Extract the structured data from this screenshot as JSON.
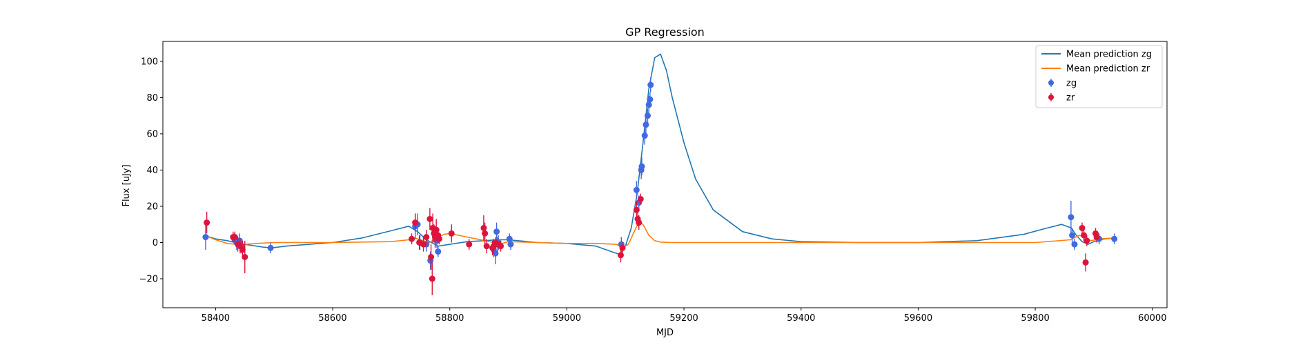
{
  "chart_data": {
    "type": "scatter",
    "title": "GP Regression",
    "xlabel": "MJD",
    "ylabel": "Flux [uJy]",
    "xlim": [
      58310,
      60025
    ],
    "ylim": [
      -36,
      111
    ],
    "xticks": [
      58400,
      58600,
      58800,
      59000,
      59200,
      59400,
      59600,
      59800,
      60000
    ],
    "yticks": [
      -20,
      0,
      20,
      40,
      60,
      80,
      100
    ],
    "grid": false,
    "legend_position": "top-right",
    "legend": [
      {
        "label": "Mean prediction zg",
        "kind": "line",
        "color": "#1f77b4"
      },
      {
        "label": "Mean prediction zr",
        "kind": "line",
        "color": "#ff7f0e"
      },
      {
        "label": "zg",
        "kind": "errorbar",
        "color": "#4169e1"
      },
      {
        "label": "zr",
        "kind": "errorbar",
        "color": "#dc143c"
      }
    ],
    "series": [
      {
        "name": "Mean prediction zg",
        "kind": "line",
        "color": "#1f77b4",
        "x": [
          58385,
          58400,
          58420,
          58440,
          58460,
          58480,
          58495,
          58520,
          58560,
          58600,
          58650,
          58700,
          58730,
          58745,
          58760,
          58780,
          58800,
          58830,
          58860,
          58880,
          58900,
          58950,
          59000,
          59050,
          59080,
          59090,
          59100,
          59110,
          59120,
          59130,
          59140,
          59150,
          59160,
          59170,
          59180,
          59200,
          59220,
          59250,
          59300,
          59350,
          59400,
          59500,
          59600,
          59700,
          59780,
          59820,
          59845,
          59862,
          59870,
          59880,
          59890,
          59900,
          59910,
          59920,
          59935
        ],
        "y": [
          3.5,
          2.0,
          1.0,
          -0.5,
          -1.5,
          -2.5,
          -3.0,
          -2.0,
          -1.0,
          0.0,
          2.5,
          6.5,
          9.0,
          6.0,
          1.5,
          -2.0,
          -1.0,
          0.5,
          1.0,
          1.5,
          1.5,
          0.0,
          -0.5,
          -2.0,
          -5.5,
          -6.5,
          -2.0,
          8.0,
          27.0,
          55.0,
          85.0,
          102.0,
          104.0,
          95.0,
          80.0,
          55.0,
          35.0,
          18.0,
          6.0,
          2.0,
          0.5,
          0.0,
          0.0,
          1.0,
          4.5,
          8.0,
          10.0,
          8.0,
          4.0,
          0.5,
          -1.0,
          0.5,
          1.5,
          2.0,
          2.5
        ]
      },
      {
        "name": "Mean prediction zr",
        "kind": "line",
        "color": "#ff7f0e",
        "x": [
          58385,
          58400,
          58420,
          58435,
          58450,
          58470,
          58500,
          58600,
          58700,
          58730,
          58740,
          58750,
          58765,
          58780,
          58790,
          58800,
          58815,
          58830,
          58845,
          58860,
          58875,
          58890,
          58900,
          58950,
          59000,
          59050,
          59085,
          59095,
          59105,
          59115,
          59123,
          59130,
          59140,
          59150,
          59160,
          59180,
          59200,
          59400,
          59600,
          59800,
          59860,
          59875,
          59885,
          59895,
          59910,
          59935
        ],
        "y": [
          3.5,
          1.5,
          -0.5,
          -1.0,
          -1.0,
          -0.5,
          0.0,
          0.0,
          0.5,
          1.5,
          2.5,
          1.5,
          0.0,
          3.0,
          4.5,
          5.0,
          4.0,
          3.0,
          2.0,
          1.0,
          0.0,
          -0.5,
          0.5,
          0.0,
          -0.5,
          -0.5,
          -1.0,
          -3.0,
          -1.0,
          6.0,
          11.5,
          10.0,
          4.0,
          1.0,
          0.2,
          0.0,
          0.0,
          0.0,
          0.0,
          0.0,
          1.5,
          4.0,
          3.0,
          1.0,
          2.0,
          2.5
        ]
      },
      {
        "name": "zg",
        "kind": "errorbar",
        "color": "#4169e1",
        "x": [
          58383,
          58432,
          58436,
          58441,
          58445,
          58494,
          58741,
          58745,
          58749,
          58760,
          58767,
          58778,
          58780,
          58875,
          58878,
          58880,
          58883,
          58902,
          58904,
          59093,
          59119,
          59123,
          59127,
          59128,
          59133,
          59135,
          59138,
          59140,
          59142,
          59143,
          59861,
          59863,
          59867,
          59905,
          59909,
          59935
        ],
        "y": [
          3,
          2,
          0,
          1,
          -2,
          -3,
          9,
          10,
          0,
          -1,
          -10,
          1,
          -5,
          -4,
          -6,
          6,
          0,
          2,
          -1,
          -1,
          29,
          22,
          40,
          42,
          59,
          65,
          70,
          76,
          79,
          87,
          14,
          4,
          -1,
          3,
          2,
          2
        ],
        "err": [
          7,
          3,
          4,
          4,
          4,
          3,
          7,
          6,
          4,
          4,
          5,
          4,
          3,
          4,
          6,
          5,
          4,
          3,
          3,
          4,
          5,
          4,
          5,
          5,
          5,
          5,
          4,
          5,
          4,
          4,
          9,
          4,
          3,
          3,
          3,
          3
        ]
      },
      {
        "name": "zr",
        "kind": "errorbar",
        "color": "#dc143c",
        "x": [
          58385,
          58430,
          58433,
          58438,
          58442,
          58446,
          58450,
          58735,
          58741,
          58748,
          58755,
          58760,
          58766,
          58768,
          58770,
          58771,
          58773,
          58775,
          58777,
          58780,
          58782,
          58803,
          58833,
          58858,
          58860,
          58863,
          58873,
          58875,
          58878,
          58882,
          58887,
          59092,
          59095,
          59119,
          59121,
          59123,
          59126,
          59880,
          59883,
          59886,
          59888,
          59903,
          59905
        ],
        "y": [
          11,
          3,
          3,
          -1,
          -2,
          -4,
          -8,
          2,
          11,
          0,
          -1,
          3,
          13,
          -8,
          -20,
          8,
          5,
          3,
          7,
          4,
          2,
          5,
          -1,
          8,
          5,
          -2,
          -3,
          -2,
          0,
          -1,
          -2,
          -7,
          -3,
          18,
          13,
          11,
          24,
          8,
          4,
          -11,
          1,
          5,
          3
        ],
        "err": [
          6,
          3,
          3,
          4,
          4,
          5,
          9,
          3,
          5,
          4,
          4,
          4,
          6,
          7,
          9,
          8,
          5,
          6,
          6,
          4,
          3,
          5,
          3,
          7,
          6,
          4,
          4,
          4,
          3,
          4,
          3,
          4,
          3,
          5,
          4,
          4,
          3,
          3,
          3,
          5,
          3,
          3,
          3
        ]
      }
    ]
  }
}
